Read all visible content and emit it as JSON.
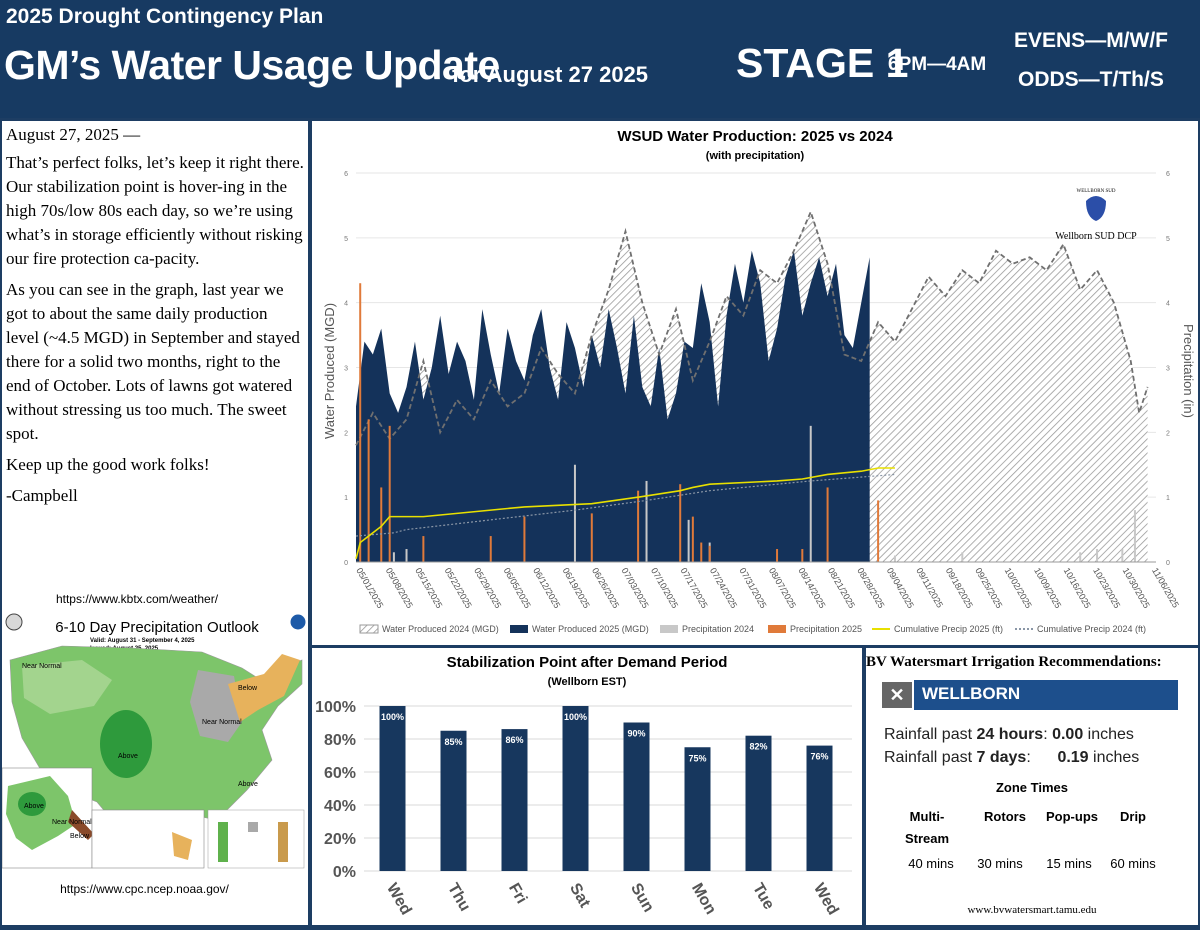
{
  "header": {
    "plan": "2025 Drought Contingency Plan",
    "title": "GM’s Water Usage Update",
    "date": "for August 27 2025",
    "stage": "STAGE 1",
    "hours": "6PM—4AM",
    "evens": "EVENS—M/W/F",
    "odds": "ODDS—T/Th/S"
  },
  "letter": {
    "date": "August 27, 2025 —",
    "p1": "That’s perfect folks, let’s keep it right there.  Our stabilization point is hover-ing in the high 70s/low 80s each day, so we’re using what’s in storage efficiently without risking our fire protection ca-pacity.",
    "p2": "As you can see in the graph, last year we got to about the same daily production level (~4.5 MGD) in September and stayed there for a solid two months, right to the end of October.  Lots of lawns got watered without stressing us too much. The sweet spot.",
    "p3": "Keep up the good work folks!",
    "sign": "-Campbell"
  },
  "outlook": {
    "url_top": "https://www.kbtx.com/weather/",
    "title": "6-10 Day Precipitation Outlook",
    "valid": "Valid:  August 31 - September 4, 2025",
    "issued": "Issued:  August 25, 2025",
    "labels": [
      "Near Normal",
      "Below",
      "Near Normal",
      "Above",
      "Above",
      "Above",
      "Near Normal",
      "Below"
    ],
    "url_bottom": "https://www.cpc.ncep.noaa.gov/",
    "colors": {
      "above": "#6fbe5a",
      "above_dark": "#2e9a3c",
      "below": "#e0b05a",
      "normal": "#a9a9a9"
    }
  },
  "production": {
    "logo_text": "WELLBORN SUD",
    "logo_caption": "Wellborn SUD DCP",
    "legend": [
      "Water Produced 2024 (MGD)",
      "Water Produced 2025 (MGD)",
      "Precipitation 2024",
      "Precipitation 2025",
      "Cumulative Precip 2025 (ft)",
      "Cumulative Precip 2024 (ft)"
    ],
    "colors": {
      "wp2025": "#14325a",
      "wp2024": "#9a9a9a",
      "p2024": "#c8c8c8",
      "p2025": "#e07a3a",
      "cum2025": "#e8e000",
      "cum2024": "#8a96a6"
    }
  },
  "stabilization": {
    "colors": {
      "bar": "#17375e"
    }
  },
  "recommendations": {
    "title": "BV Watersmart Irrigation Recommendations:",
    "location": "WELLBORN",
    "rain24_label": "Rainfall past ",
    "rain24_bold": "24 hours",
    "rain24_colon": ": ",
    "rain24_value": "0.00",
    "rain24_unit": " inches",
    "rain7_label": "Rainfall past ",
    "rain7_bold": "7 days",
    "rain7_colon": ":      ",
    "rain7_value": "0.19",
    "rain7_unit": " inches",
    "zone_title": "Zone Times",
    "zones": [
      {
        "name": "Multi-\nStream",
        "time": "40 mins"
      },
      {
        "name": "Rotors",
        "time": "30 mins"
      },
      {
        "name": "Pop-ups",
        "time": "15 mins"
      },
      {
        "name": "Drip",
        "time": "60 mins"
      }
    ],
    "url": "www.bvwatersmart.tamu.edu"
  },
  "chart_data": [
    {
      "type": "area",
      "title": "WSUD Water Production: 2025 vs 2024",
      "subtitle": "(with precipitation)",
      "ylabel": "Water Produced (MGD)",
      "y2label": "Precipitation (in)",
      "ylim": [
        0,
        6
      ],
      "y2lim": [
        0,
        6
      ],
      "yticks": [
        0,
        1,
        2,
        3,
        4,
        5,
        6
      ],
      "xticks": [
        "05/01/2025",
        "05/08/2025",
        "05/15/2025",
        "05/22/2025",
        "05/29/2025",
        "06/05/2025",
        "06/12/2025",
        "06/19/2025",
        "06/26/2025",
        "07/03/2025",
        "07/10/2025",
        "07/17/2025",
        "07/24/2025",
        "07/31/2025",
        "08/07/2025",
        "08/14/2025",
        "08/21/2025",
        "08/28/2025",
        "09/04/2025",
        "09/11/2025",
        "09/18/2025",
        "09/25/2025",
        "10/02/2025",
        "10/09/2025",
        "10/16/2025",
        "10/23/2025",
        "10/30/2025",
        "11/06/2025"
      ],
      "series": [
        {
          "name": "Water Produced 2025 (MGD)",
          "x": [
            0,
            2,
            4,
            6,
            8,
            10,
            12,
            14,
            16,
            18,
            20,
            22,
            24,
            26,
            28,
            30,
            32,
            34,
            36,
            38,
            40,
            42,
            44,
            46,
            48,
            50,
            52,
            54,
            56,
            58,
            60,
            62,
            64,
            66,
            68,
            70,
            72,
            74,
            76,
            78,
            80,
            82,
            84,
            86,
            88,
            90,
            92,
            94,
            96,
            98,
            100,
            102,
            104,
            106,
            108,
            110,
            112,
            114,
            116,
            118,
            120,
            122
          ],
          "values": [
            2.4,
            3.4,
            3.2,
            3.6,
            2.6,
            2.3,
            2.7,
            3.4,
            2.5,
            3.0,
            3.8,
            2.9,
            3.4,
            3.1,
            2.5,
            3.9,
            3.2,
            2.6,
            3.6,
            3.1,
            2.8,
            3.5,
            3.9,
            3.0,
            2.5,
            3.7,
            3.3,
            2.7,
            3.5,
            3.0,
            3.9,
            3.3,
            2.6,
            3.8,
            2.7,
            2.4,
            3.3,
            2.2,
            2.6,
            3.4,
            3.3,
            4.3,
            3.7,
            2.4,
            3.8,
            4.6,
            4.0,
            4.8,
            4.3,
            3.1,
            3.6,
            4.4,
            4.8,
            3.8,
            4.3,
            4.7,
            4.1,
            4.6,
            3.5,
            3.3,
            4.0,
            4.7
          ]
        },
        {
          "name": "Water Produced 2024 (MGD)",
          "x": [
            0,
            4,
            8,
            12,
            16,
            20,
            24,
            28,
            32,
            36,
            40,
            44,
            48,
            52,
            56,
            60,
            64,
            68,
            72,
            76,
            80,
            84,
            88,
            92,
            96,
            100,
            104,
            108,
            112,
            116,
            120,
            124,
            128,
            132,
            136,
            140,
            144,
            148,
            152,
            156,
            160,
            164,
            168,
            172,
            176,
            180,
            184,
            186,
            188
          ],
          "values": [
            1.8,
            2.3,
            1.9,
            2.2,
            3.1,
            2.0,
            2.5,
            2.2,
            2.8,
            2.4,
            2.6,
            3.3,
            2.9,
            2.6,
            3.5,
            4.2,
            5.1,
            4.0,
            3.2,
            3.9,
            2.8,
            3.4,
            4.1,
            3.8,
            4.5,
            4.3,
            4.8,
            5.4,
            4.6,
            3.2,
            3.1,
            3.7,
            3.4,
            3.9,
            4.4,
            4.1,
            4.5,
            4.3,
            4.8,
            4.6,
            4.7,
            4.5,
            4.9,
            4.2,
            4.5,
            4.0,
            3.1,
            2.3,
            2.7
          ]
        },
        {
          "name": "Precipitation 2024",
          "x": [
            9,
            12,
            52,
            69,
            79,
            84,
            108,
            128,
            144,
            172,
            176,
            182,
            185
          ],
          "values": [
            0.15,
            0.2,
            1.5,
            1.25,
            0.65,
            0.3,
            2.1,
            0.1,
            0.15,
            0.15,
            0.2,
            0.2,
            0.8
          ]
        },
        {
          "name": "Precipitation 2025",
          "x": [
            1,
            3,
            6,
            8,
            16,
            32,
            40,
            56,
            67,
            77,
            80,
            82,
            84,
            100,
            106,
            112,
            124
          ],
          "values": [
            4.3,
            2.2,
            1.15,
            2.1,
            0.4,
            0.4,
            0.7,
            0.75,
            1.1,
            1.2,
            0.7,
            0.3,
            0.25,
            0.2,
            0.2,
            1.15,
            0.95
          ]
        },
        {
          "name": "Cumulative Precip 2025 (ft)",
          "x": [
            0,
            1,
            3,
            6,
            8,
            16,
            32,
            40,
            56,
            67,
            77,
            80,
            84,
            100,
            106,
            112,
            120,
            124,
            128
          ],
          "values": [
            0.05,
            0.3,
            0.4,
            0.55,
            0.7,
            0.7,
            0.8,
            0.85,
            0.9,
            1.0,
            1.1,
            1.15,
            1.2,
            1.25,
            1.28,
            1.35,
            1.4,
            1.45,
            1.45
          ]
        },
        {
          "name": "Cumulative Precip 2024 (ft)",
          "x": [
            0,
            9,
            12,
            52,
            69,
            79,
            84,
            108,
            128
          ],
          "values": [
            0.4,
            0.45,
            0.5,
            0.8,
            0.95,
            1.05,
            1.1,
            1.25,
            1.35
          ]
        }
      ]
    },
    {
      "type": "bar",
      "title": "Stabilization Point after Demand Period",
      "subtitle": "(Wellborn EST)",
      "categories": [
        "Wed",
        "Thu",
        "Fri",
        "Sat",
        "Sun",
        "Mon",
        "Tue",
        "Wed"
      ],
      "values": [
        100,
        85,
        86,
        100,
        90,
        75,
        82,
        76
      ],
      "value_labels": [
        "100%",
        "85%",
        "86%",
        "100%",
        "90%",
        "75%",
        "82%",
        "76%"
      ],
      "yticks": [
        "100%",
        "80%",
        "60%",
        "40%",
        "20%",
        "0%"
      ],
      "ylim": [
        0,
        100
      ]
    }
  ]
}
